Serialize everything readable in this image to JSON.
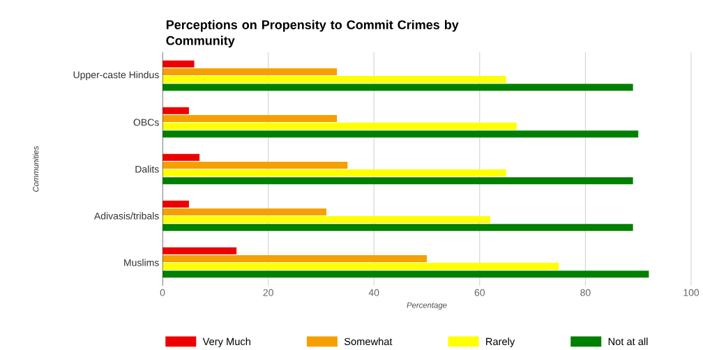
{
  "chart_data": {
    "type": "bar",
    "orientation": "horizontal",
    "title": "Perceptions on Propensity to Commit Crimes by Community",
    "xlabel": "Percentage",
    "ylabel": "Communities",
    "categories": [
      "Upper-caste Hindus",
      "OBCs",
      "Dalits",
      "Adivasis/tribals",
      "Muslims"
    ],
    "series": [
      {
        "name": "Very Much",
        "color": "#ee0000",
        "values": [
          6,
          5,
          7,
          5,
          14
        ]
      },
      {
        "name": "Somewhat",
        "color": "#f5a000",
        "values": [
          33,
          33,
          35,
          31,
          50
        ]
      },
      {
        "name": "Rarely",
        "color": "#ffff00",
        "values": [
          65,
          67,
          65,
          62,
          75
        ]
      },
      {
        "name": "Not at all",
        "color": "#008000",
        "values": [
          89,
          90,
          89,
          89,
          92
        ]
      }
    ],
    "xlim": [
      0,
      100
    ],
    "xticks": [
      0,
      20,
      40,
      60,
      80,
      100
    ],
    "grid": "x",
    "legend": "bottom"
  }
}
